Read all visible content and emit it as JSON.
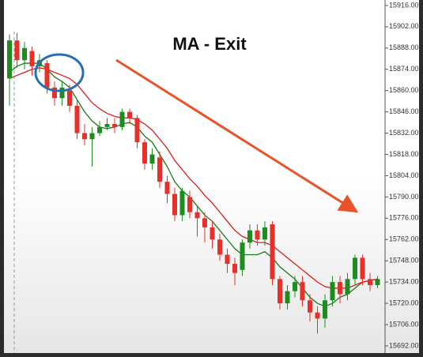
{
  "chart_data": {
    "type": "candlestick",
    "title": "MA - Exit",
    "open": [
      15868,
      15893,
      15880,
      15886,
      15876,
      15878,
      15862,
      15855,
      15860,
      15850,
      15832,
      15828,
      15832,
      15836,
      15838,
      15836,
      15846,
      15842,
      15826,
      15812,
      15816,
      15800,
      15792,
      15778,
      15790,
      15780,
      15776,
      15770,
      15762,
      15752,
      15746,
      15742,
      15760,
      15768,
      15762,
      15772,
      15736,
      15720,
      15728,
      15734,
      15722,
      15714,
      15710,
      15722,
      15734,
      15726,
      15736,
      15750,
      15736,
      15732
    ],
    "high": [
      15897,
      15898,
      15892,
      15889,
      15884,
      15880,
      15866,
      15866,
      15864,
      15854,
      15838,
      15836,
      15840,
      15842,
      15842,
      15848,
      15848,
      15844,
      15828,
      15822,
      15820,
      15804,
      15796,
      15796,
      15794,
      15784,
      15780,
      15774,
      15766,
      15756,
      15750,
      15762,
      15772,
      15772,
      15774,
      15774,
      15738,
      15732,
      15738,
      15738,
      15726,
      15718,
      15726,
      15738,
      15738,
      15740,
      15752,
      15752,
      15740,
      15738
    ],
    "low": [
      15850,
      15875,
      15874,
      15870,
      15872,
      15858,
      15850,
      15850,
      15846,
      15828,
      15824,
      15810,
      15830,
      15834,
      15832,
      15834,
      15838,
      15822,
      15808,
      15808,
      15796,
      15786,
      15774,
      15774,
      15776,
      15764,
      15760,
      15756,
      15748,
      15740,
      15732,
      15738,
      15756,
      15758,
      15758,
      15732,
      15716,
      15716,
      15724,
      15718,
      15708,
      15700,
      15704,
      15718,
      15720,
      15722,
      15732,
      15732,
      15728,
      15730
    ],
    "close": [
      15893,
      15880,
      15888,
      15876,
      15880,
      15862,
      15855,
      15862,
      15850,
      15832,
      15828,
      15832,
      15836,
      15838,
      15836,
      15846,
      15842,
      15826,
      15812,
      15818,
      15800,
      15792,
      15778,
      15794,
      15780,
      15776,
      15770,
      15762,
      15752,
      15746,
      15740,
      15760,
      15768,
      15762,
      15770,
      15736,
      15720,
      15728,
      15734,
      15722,
      15714,
      15710,
      15722,
      15734,
      15726,
      15736,
      15750,
      15736,
      15732,
      15736
    ],
    "up_color": "#1e8c1e",
    "down_color": "#e8302a",
    "series": [
      {
        "color": "#1a7a1a",
        "values": [
          15872,
          15876,
          15878,
          15878,
          15878,
          15874,
          15869,
          15866,
          15862,
          15854,
          15846,
          15840,
          15836,
          15835,
          15836,
          15838,
          15839,
          15836,
          15830,
          15826,
          15818,
          15810,
          15800,
          15794,
          15790,
          15784,
          15778,
          15774,
          15768,
          15762,
          15756,
          15752,
          15752,
          15752,
          15754,
          15750,
          15744,
          15740,
          15736,
          15730,
          15724,
          15720,
          15718,
          15720,
          15724,
          15726,
          15730,
          15734,
          15735,
          15736
        ]
      },
      {
        "color": "#d42020",
        "values": [
          15868,
          15870,
          15872,
          15874,
          15875,
          15874,
          15872,
          15870,
          15868,
          15864,
          15858,
          15852,
          15848,
          15845,
          15843,
          15842,
          15842,
          15841,
          15838,
          15834,
          15828,
          15822,
          15814,
          15808,
          15802,
          15797,
          15791,
          15786,
          15780,
          15774,
          15768,
          15764,
          15762,
          15760,
          15760,
          15758,
          15754,
          15750,
          15746,
          15742,
          15738,
          15734,
          15731,
          15730,
          15730,
          15730,
          15732,
          15734,
          15735,
          15736
        ]
      }
    ],
    "ylim": [
      15687.3,
      15919.6
    ],
    "yticks": [
      {
        "value": 15916,
        "label": "15916.00"
      },
      {
        "value": 15902,
        "label": "15902.00"
      },
      {
        "value": 15888,
        "label": "15888.00"
      },
      {
        "value": 15874,
        "label": "15874.00"
      },
      {
        "value": 15860,
        "label": "15860.00"
      },
      {
        "value": 15846,
        "label": "15846.00"
      },
      {
        "value": 15832,
        "label": "15832.00"
      },
      {
        "value": 15818,
        "label": "15818.00"
      },
      {
        "value": 15804,
        "label": "15804.00"
      },
      {
        "value": 15790,
        "label": "15790.00"
      },
      {
        "value": 15776,
        "label": "15776.00"
      },
      {
        "value": 15762,
        "label": "15762.00"
      },
      {
        "value": 15748,
        "label": "15748.00"
      },
      {
        "value": 15734,
        "label": "15734.00"
      },
      {
        "value": 15720,
        "label": "15720.00"
      },
      {
        "value": 15706,
        "label": "15706.00"
      },
      {
        "value": 15692,
        "label": "15692.00"
      }
    ]
  }
}
